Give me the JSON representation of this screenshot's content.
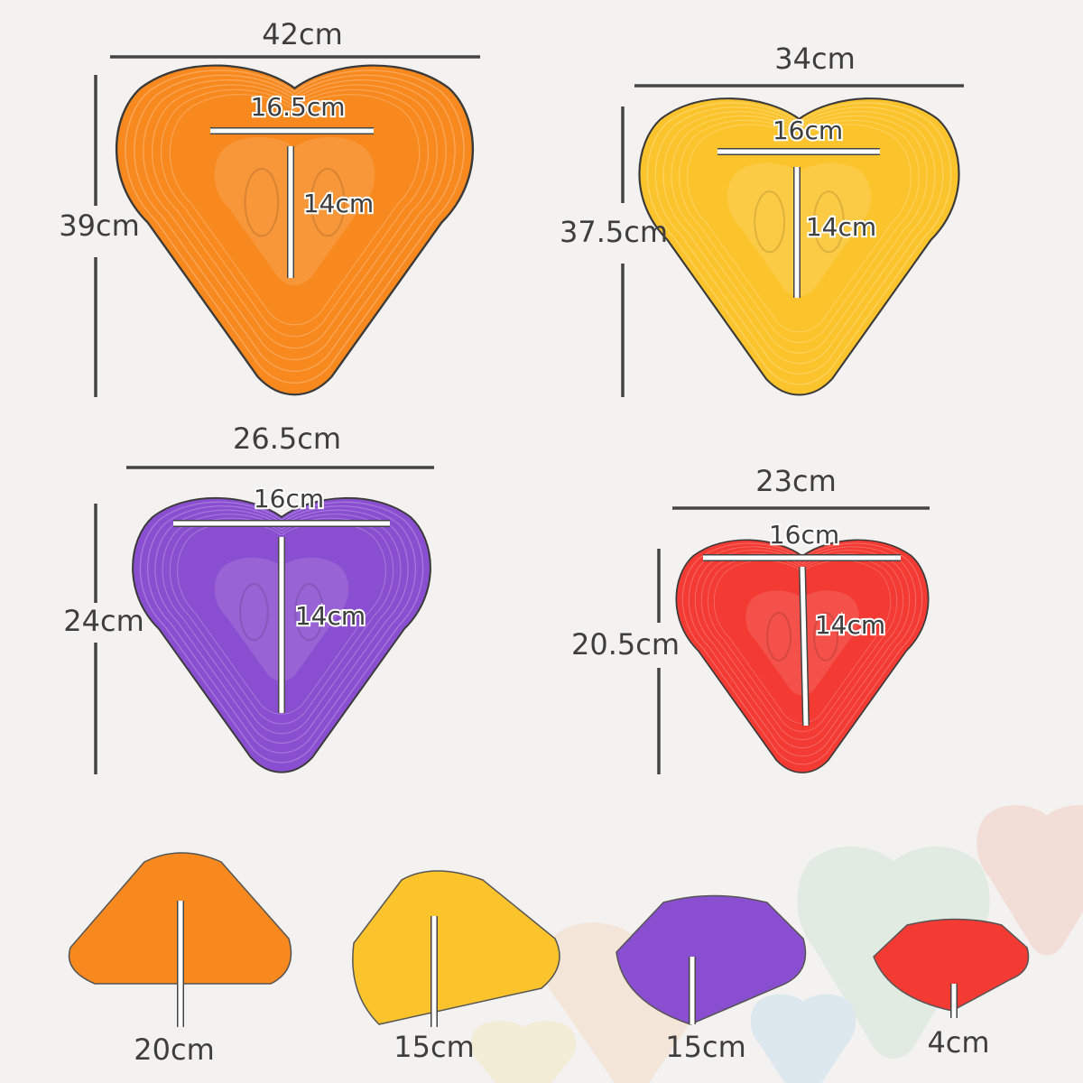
{
  "colors": {
    "orange": "#f7891f",
    "yellow": "#fcc42c",
    "purple": "#8a4fd0",
    "red": "#f33a33",
    "background": "#f3f2f0",
    "dimension_line": "#444444"
  },
  "stones": [
    {
      "name": "orange",
      "width": "42cm",
      "length": "39cm",
      "foot_width": "16.5cm",
      "foot_length": "14cm"
    },
    {
      "name": "yellow",
      "width": "34cm",
      "length": "37.5cm",
      "foot_width": "16cm",
      "foot_length": "14cm"
    },
    {
      "name": "purple",
      "width": "26.5cm",
      "length": "24cm",
      "foot_width": "16cm",
      "foot_length": "14cm"
    },
    {
      "name": "red",
      "width": "23cm",
      "length": "20.5cm",
      "foot_width": "16cm",
      "foot_length": "14cm"
    }
  ],
  "heights": [
    "20cm",
    "15cm",
    "15cm",
    "4cm"
  ]
}
